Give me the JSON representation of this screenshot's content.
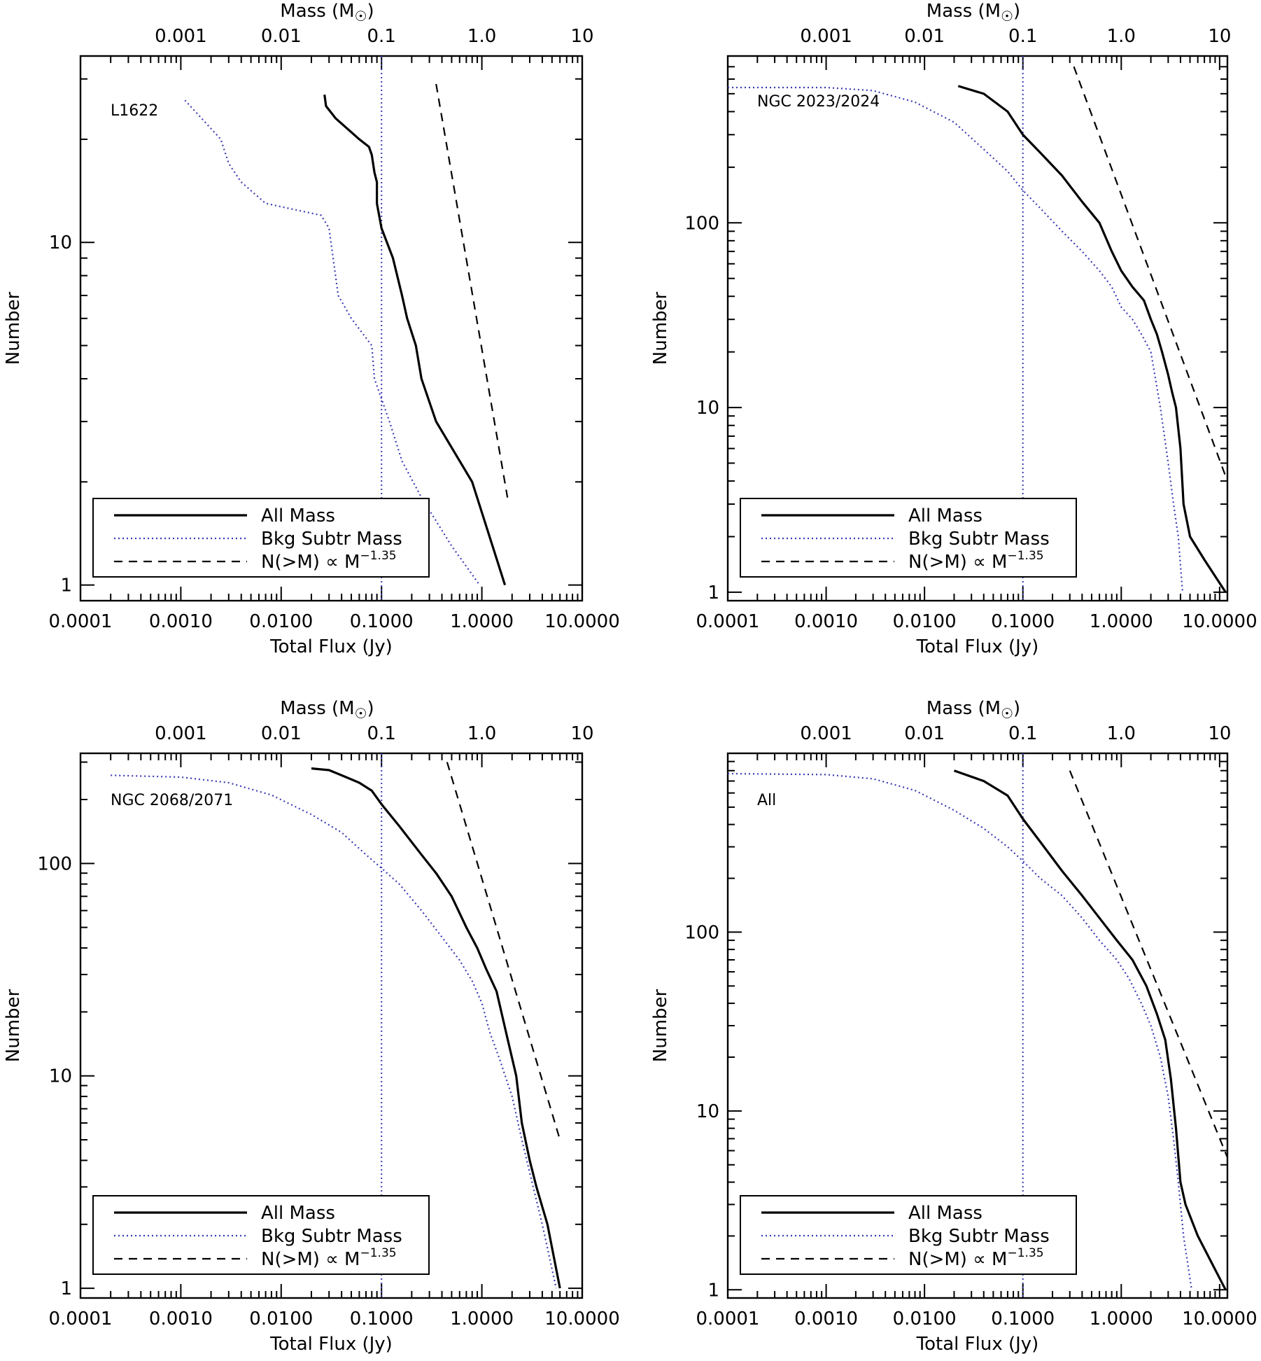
{
  "axis_text": {
    "top_title": "Mass (M",
    "top_title_close": ")",
    "bottom_title": "Total Flux (Jy)",
    "left_title": "Number"
  },
  "legend": {
    "all_mass": "All Mass",
    "bkg_subtr": "Bkg Subtr Mass",
    "power_law_prefix": "N(>M) ∝ M",
    "power_law_exponent": "−1.35"
  },
  "colors": {
    "all_mass": "#000000",
    "bkg_subtr": "#3b3bb3",
    "power_law": "#000000",
    "threshold": "#3b3bb3"
  },
  "chart_data": [
    {
      "type": "line",
      "label": "L1622",
      "xlabel": "Total Flux (Jy)",
      "ylabel": "Number",
      "x2label": "Mass (M☉)",
      "xscale": "log",
      "yscale": "log",
      "xlim": [
        0.0001,
        10
      ],
      "ylim": [
        0.9,
        35
      ],
      "x_ticks": [
        "0.0001",
        "0.0010",
        "0.0100",
        "0.1000",
        "1.0000",
        "10.0000"
      ],
      "y_ticks": [
        "1",
        "10"
      ],
      "mass_ticks": [
        "0.001",
        "0.01",
        "0.1",
        "1.0",
        "10"
      ],
      "threshold_x": 0.1,
      "series": [
        {
          "name": "All Mass",
          "style": "solid",
          "x": [
            0.027,
            0.028,
            0.035,
            0.06,
            0.075,
            0.08,
            0.085,
            0.09,
            0.09,
            0.1,
            0.13,
            0.16,
            0.18,
            0.22,
            0.25,
            0.35,
            0.8,
            1.7
          ],
          "y": [
            27,
            25,
            23,
            20,
            19,
            18,
            16,
            15,
            13,
            11,
            9,
            7,
            6,
            5,
            4,
            3,
            2,
            1
          ]
        },
        {
          "name": "Bkg Subtr Mass",
          "style": "dotted",
          "x": [
            0.0011,
            0.0025,
            0.003,
            0.004,
            0.007,
            0.025,
            0.03,
            0.037,
            0.05,
            0.08,
            0.085,
            0.12,
            0.16,
            0.25,
            0.5,
            0.95
          ],
          "y": [
            26,
            20,
            17,
            15,
            13,
            12,
            11,
            7,
            6,
            5,
            4,
            3,
            2.3,
            1.8,
            1.3,
            1
          ]
        },
        {
          "name": "N(>M) ∝ M^-1.35",
          "style": "dashed",
          "x": [
            0.35,
            1.8
          ],
          "y": [
            29,
            1.8
          ]
        }
      ]
    },
    {
      "type": "line",
      "label": "NGC 2023/2024",
      "xlabel": "Total Flux (Jy)",
      "ylabel": "Number",
      "x2label": "Mass (M☉)",
      "xscale": "log",
      "yscale": "log",
      "xlim": [
        0.0001,
        12
      ],
      "ylim": [
        0.9,
        800
      ],
      "x_ticks": [
        "0.0001",
        "0.0010",
        "0.0100",
        "0.1000",
        "1.0000",
        "10.0000"
      ],
      "y_ticks": [
        "1",
        "10",
        "100"
      ],
      "mass_ticks": [
        "0.001",
        "0.01",
        "0.1",
        "1.0",
        "10"
      ],
      "threshold_x": 0.1,
      "series": [
        {
          "name": "All Mass",
          "style": "solid",
          "x": [
            0.022,
            0.04,
            0.07,
            0.1,
            0.15,
            0.25,
            0.4,
            0.6,
            0.8,
            1.0,
            1.3,
            1.7,
            2.0,
            2.3,
            2.6,
            3.0,
            3.3,
            3.6,
            4.0,
            4.3,
            5.0,
            7.0,
            11.5
          ],
          "y": [
            550,
            500,
            400,
            300,
            240,
            180,
            130,
            100,
            70,
            55,
            45,
            38,
            30,
            25,
            20,
            15,
            12,
            10,
            6,
            3,
            2,
            1.5,
            1
          ]
        },
        {
          "name": "Bkg Subtr Mass",
          "style": "dotted",
          "x": [
            0.0001,
            0.001,
            0.003,
            0.008,
            0.02,
            0.04,
            0.07,
            0.1,
            0.15,
            0.25,
            0.4,
            0.6,
            0.8,
            1.0,
            1.3,
            1.6,
            2.0,
            2.5,
            3.0,
            3.4,
            3.8,
            4.2
          ],
          "y": [
            540,
            540,
            520,
            450,
            350,
            250,
            190,
            150,
            120,
            90,
            70,
            55,
            45,
            35,
            30,
            25,
            20,
            10,
            5,
            3,
            2,
            1
          ]
        },
        {
          "name": "N(>M) ∝ M^-1.35",
          "style": "dashed",
          "x": [
            0.33,
            12
          ],
          "y": [
            700,
            4
          ]
        }
      ]
    },
    {
      "type": "line",
      "label": "NGC 2068/2071",
      "xlabel": "Total Flux (Jy)",
      "ylabel": "Number",
      "x2label": "Mass (M☉)",
      "xscale": "log",
      "yscale": "log",
      "xlim": [
        0.0001,
        10
      ],
      "ylim": [
        0.9,
        330
      ],
      "x_ticks": [
        "0.0001",
        "0.0010",
        "0.0100",
        "0.1000",
        "1.0000",
        "10.0000"
      ],
      "y_ticks": [
        "1",
        "10",
        "100"
      ],
      "mass_ticks": [
        "0.001",
        "0.01",
        "0.1",
        "1.0",
        "10"
      ],
      "threshold_x": 0.1,
      "series": [
        {
          "name": "All Mass",
          "style": "solid",
          "x": [
            0.02,
            0.03,
            0.04,
            0.06,
            0.08,
            0.1,
            0.15,
            0.25,
            0.35,
            0.5,
            0.7,
            0.9,
            1.1,
            1.4,
            1.8,
            2.2,
            2.5,
            3.0,
            3.5,
            4.5,
            6.0
          ],
          "y": [
            280,
            275,
            260,
            240,
            220,
            190,
            150,
            110,
            90,
            70,
            50,
            40,
            32,
            25,
            15,
            10,
            6,
            4,
            3,
            2,
            1
          ]
        },
        {
          "name": "Bkg Subtr Mass",
          "style": "dotted",
          "x": [
            0.0002,
            0.001,
            0.003,
            0.008,
            0.02,
            0.04,
            0.07,
            0.1,
            0.15,
            0.25,
            0.4,
            0.6,
            0.8,
            1.0,
            1.2,
            1.5,
            2.0,
            2.5,
            3.0,
            4.0,
            5.5
          ],
          "y": [
            260,
            255,
            240,
            210,
            170,
            140,
            110,
            95,
            80,
            60,
            45,
            35,
            28,
            22,
            16,
            12,
            8,
            5,
            3.5,
            2,
            1
          ]
        },
        {
          "name": "N(>M) ∝ M^-1.35",
          "style": "dashed",
          "x": [
            0.45,
            6.0
          ],
          "y": [
            300,
            5
          ]
        }
      ]
    },
    {
      "type": "line",
      "label": "All",
      "xlabel": "Total Flux (Jy)",
      "ylabel": "Number",
      "x2label": "Mass (M☉)",
      "xscale": "log",
      "yscale": "log",
      "xlim": [
        0.0001,
        12
      ],
      "ylim": [
        0.9,
        1000
      ],
      "x_ticks": [
        "0.0001",
        "0.0010",
        "0.0100",
        "0.1000",
        "1.0000",
        "10.0000"
      ],
      "y_ticks": [
        "1",
        "10",
        "100"
      ],
      "mass_ticks": [
        "0.001",
        "0.01",
        "0.1",
        "1.0",
        "10"
      ],
      "threshold_x": 0.1,
      "series": [
        {
          "name": "All Mass",
          "style": "solid",
          "x": [
            0.02,
            0.04,
            0.07,
            0.1,
            0.15,
            0.25,
            0.4,
            0.6,
            0.9,
            1.3,
            1.8,
            2.3,
            2.8,
            3.2,
            3.6,
            4.0,
            4.5,
            6.0,
            11.5
          ],
          "y": [
            800,
            700,
            580,
            430,
            320,
            220,
            160,
            120,
            90,
            70,
            50,
            35,
            25,
            15,
            8,
            4,
            3,
            2,
            1
          ]
        },
        {
          "name": "Bkg Subtr Mass",
          "style": "dotted",
          "x": [
            0.0001,
            0.001,
            0.003,
            0.008,
            0.02,
            0.04,
            0.07,
            0.1,
            0.15,
            0.25,
            0.4,
            0.6,
            0.9,
            1.2,
            1.6,
            2.0,
            2.5,
            3.0,
            3.4,
            3.8,
            4.3,
            5.2
          ],
          "y": [
            770,
            760,
            720,
            620,
            480,
            380,
            300,
            250,
            200,
            160,
            120,
            90,
            70,
            55,
            40,
            30,
            20,
            12,
            7,
            4,
            2,
            1
          ]
        },
        {
          "name": "N(>M) ∝ M^-1.35",
          "style": "dashed",
          "x": [
            0.3,
            12
          ],
          "y": [
            800,
            5.5
          ]
        }
      ]
    }
  ]
}
